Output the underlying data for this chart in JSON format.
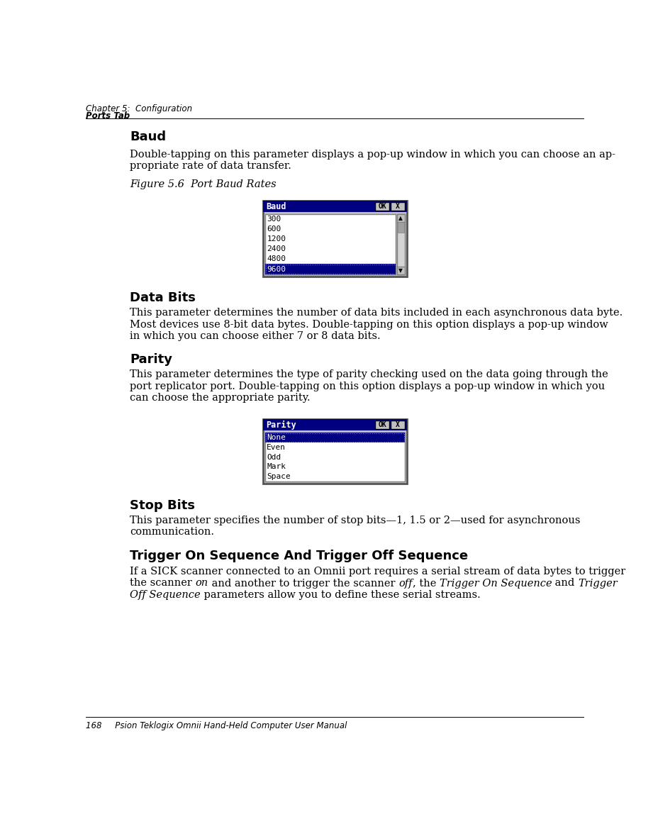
{
  "bg_color": "#ffffff",
  "header_line1": "Chapter 5:  Configuration",
  "header_line2": "Ports Tab",
  "footer_text": "168     Psion Teklogix Omnii Hand-Held Computer User Manual",
  "section1_heading": "Baud",
  "section1_body_line1": "Double-tapping on this parameter displays a pop-up window in which you can choose an ap-",
  "section1_body_line2": "propriate rate of data transfer.",
  "figure_label": "Figure 5.6  Port Baud Rates",
  "baud_dialog_title": "Baud",
  "baud_items": [
    "300",
    "600",
    "1200",
    "2400",
    "4800",
    "9600"
  ],
  "baud_selected": "9600",
  "section2_heading": "Data Bits",
  "section2_body_line1": "This parameter determines the number of data bits included in each asynchronous data byte.",
  "section2_body_line2": "Most devices use 8-bit data bytes. Double-tapping on this option displays a pop-up window",
  "section2_body_line3": "in which you can choose either 7 or 8 data bits.",
  "section3_heading": "Parity",
  "section3_body_line1": "This parameter determines the type of parity checking used on the data going through the",
  "section3_body_line2": "port replicator port. Double-tapping on this option displays a pop-up window in which you",
  "section3_body_line3": "can choose the appropriate parity.",
  "parity_dialog_title": "Parity",
  "parity_items": [
    "None",
    "Even",
    "Odd",
    "Mark",
    "Space"
  ],
  "parity_selected": "None",
  "section4_heading": "Stop Bits",
  "section4_body_line1": "This parameter specifies the number of stop bits—1, 1.5 or 2—used for asynchronous",
  "section4_body_line2": "communication.",
  "section5_heading": "Trigger On Sequence And Trigger Off Sequence",
  "section5_body_line1": "If a SICK scanner connected to an Omnii port requires a serial stream of data bytes to trigger",
  "section5_body_line2_parts": [
    {
      "text": "the scanner ",
      "style": "normal"
    },
    {
      "text": "on",
      "style": "italic"
    },
    {
      "text": " and another to trigger the scanner ",
      "style": "normal"
    },
    {
      "text": "off",
      "style": "italic"
    },
    {
      "text": ", the ",
      "style": "normal"
    },
    {
      "text": "Trigger On Sequence",
      "style": "italic"
    },
    {
      "text": " and ",
      "style": "normal"
    },
    {
      "text": "Trigger",
      "style": "italic"
    }
  ],
  "section5_body_line3_parts": [
    {
      "text": "Off Sequence",
      "style": "italic"
    },
    {
      "text": " parameters allow you to define these serial streams.",
      "style": "normal"
    }
  ],
  "dialog_title_bg": "#000080",
  "dialog_title_fg": "#ffffff",
  "dialog_bg": "#c0c0c0",
  "listbox_bg": "#ffffff",
  "selected_bg": "#000080",
  "selected_fg": "#ffffff",
  "text_color": "#000000",
  "heading_color": "#000000"
}
